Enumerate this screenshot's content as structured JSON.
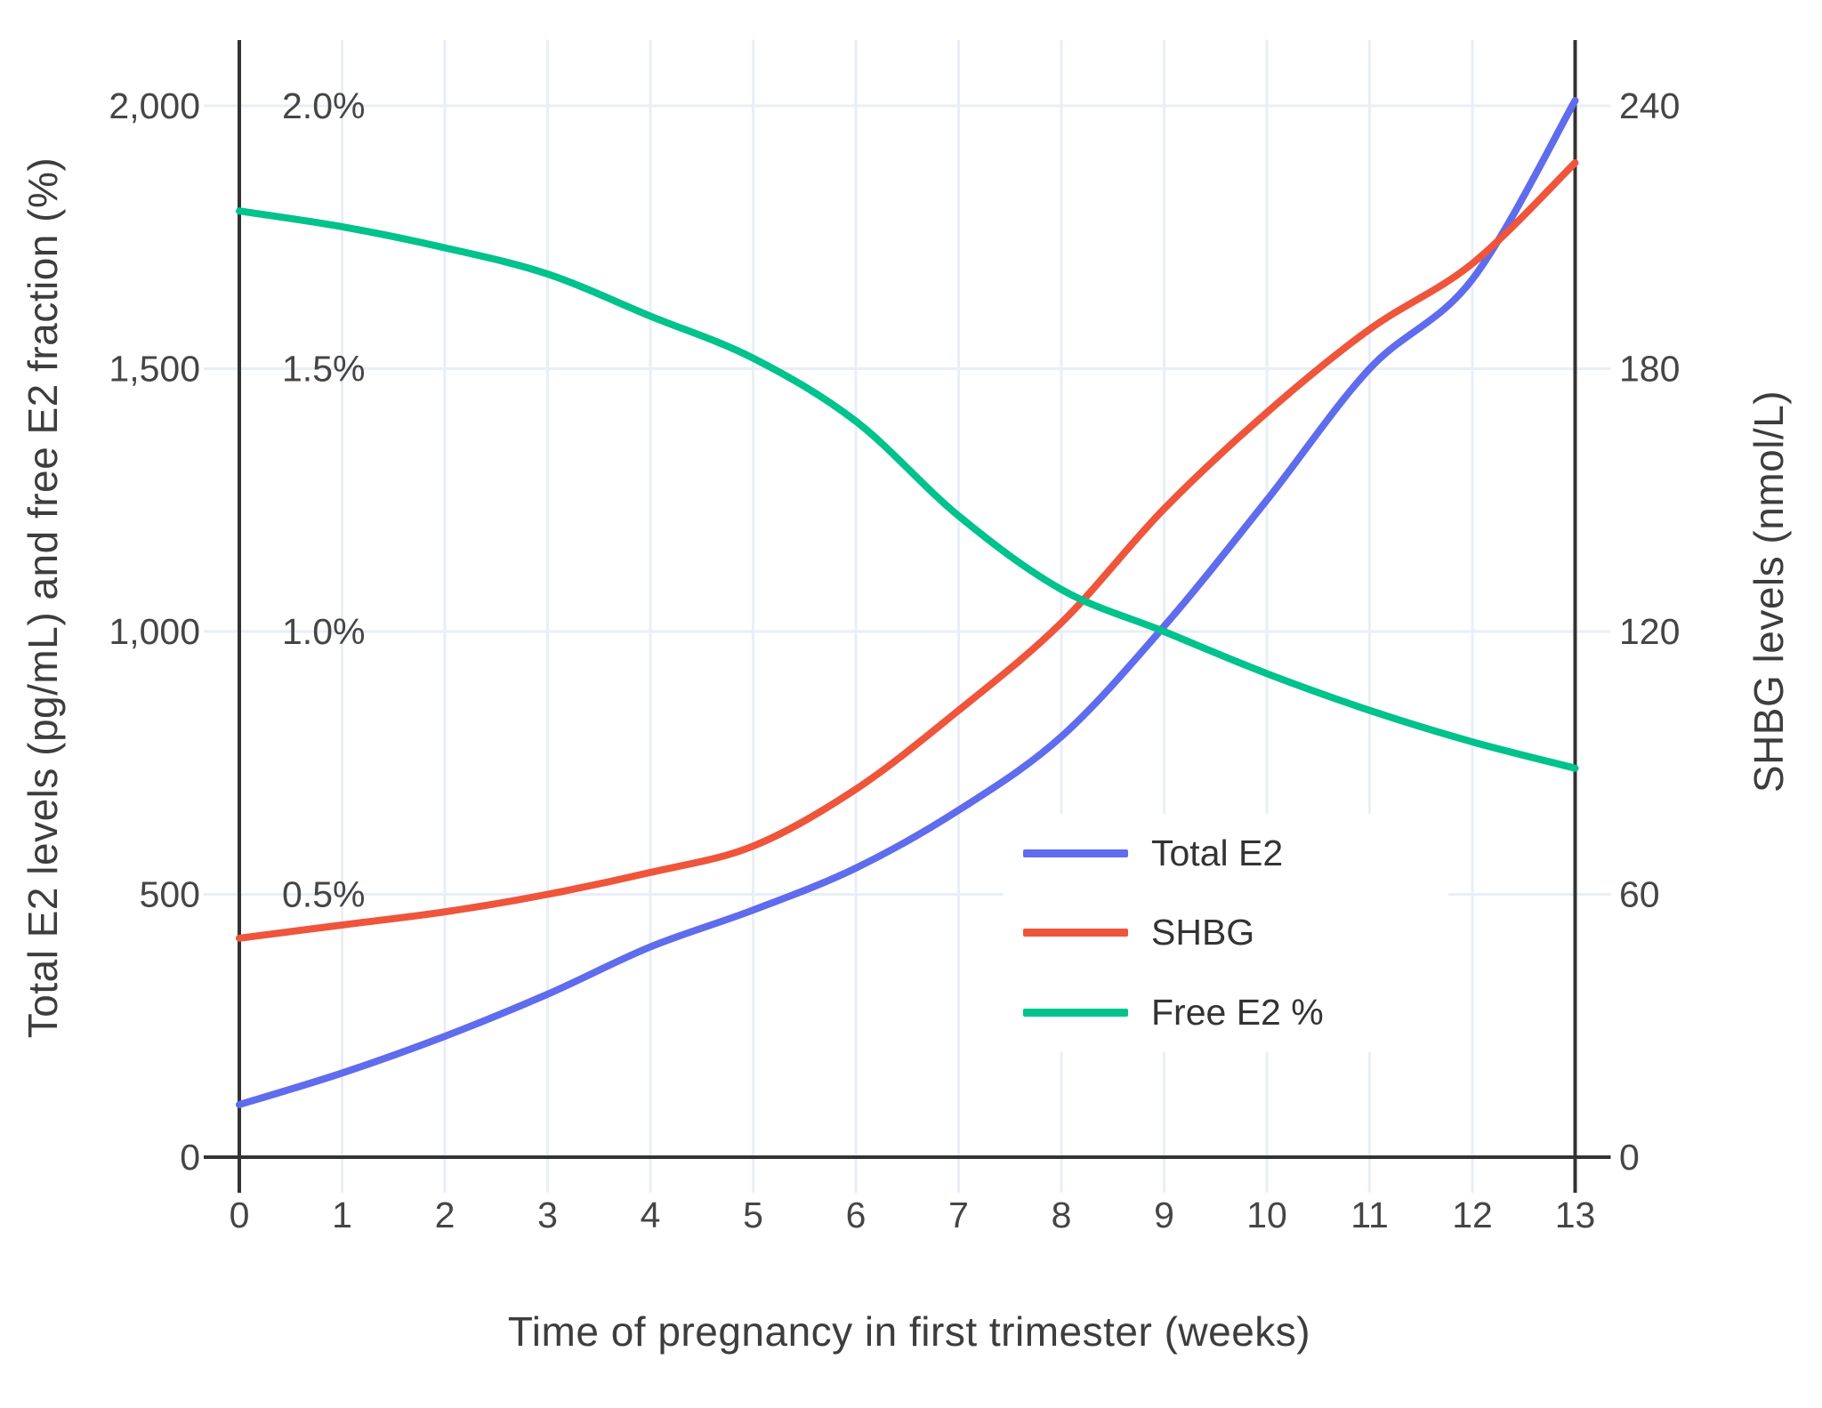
{
  "chart_data": {
    "type": "line",
    "title": "",
    "xlabel": "Time of pregnancy in first trimester (weeks)",
    "ylabel_left": "Total E2 levels (pg/mL) and free E2 fraction (%)",
    "ylabel_right": "SHBG levels (nmol/L)",
    "x": [
      0,
      1,
      2,
      3,
      4,
      5,
      6,
      7,
      8,
      9,
      10,
      11,
      12,
      13
    ],
    "x_tick_labels": [
      "0",
      "1",
      "2",
      "3",
      "4",
      "5",
      "6",
      "7",
      "8",
      "9",
      "10",
      "11",
      "12",
      "13"
    ],
    "y_left_ticks": {
      "values": [
        0,
        500,
        1000,
        1500,
        2000
      ],
      "labels": [
        "0",
        "500",
        "1,000",
        "1,500",
        "2,000"
      ]
    },
    "y_left_pct_ticks": {
      "values": [
        500,
        1000,
        1500,
        2000
      ],
      "labels": [
        "0.5%",
        "1.0%",
        "1.5%",
        "2.0%"
      ]
    },
    "y_right_ticks": {
      "values": [
        0,
        60,
        120,
        180,
        240
      ],
      "labels": [
        "0",
        "60",
        "120",
        "180",
        "240"
      ]
    },
    "y_left_range": [
      0,
      2130
    ],
    "y_right_range": [
      0,
      255.6
    ],
    "x_range": [
      0,
      13
    ],
    "grid": true,
    "legend_position": "inside-right",
    "series": [
      {
        "name": "Total E2",
        "axis": "left",
        "unit": "pg/mL",
        "color": "#5F6CEE",
        "values": [
          100,
          160,
          230,
          310,
          400,
          470,
          550,
          660,
          800,
          1010,
          1250,
          1500,
          1670,
          2010
        ]
      },
      {
        "name": "SHBG",
        "axis": "right",
        "unit": "nmol/L",
        "color": "#EF553B",
        "values": [
          50,
          53,
          56,
          60,
          65,
          71,
          84,
          102,
          122,
          148,
          170,
          189,
          204,
          227
        ]
      },
      {
        "name": "Free E2 %",
        "axis": "left-percent",
        "unit": "%",
        "values_note": "plotted on left axis where 500 units = 0.5%",
        "color": "#00C28C",
        "values": [
          1.8,
          1.77,
          1.73,
          1.68,
          1.6,
          1.52,
          1.4,
          1.22,
          1.08,
          1.0,
          0.92,
          0.85,
          0.79,
          0.74
        ]
      }
    ]
  },
  "legend": {
    "items": [
      {
        "label": "Total E2",
        "color": "#5F6CEE"
      },
      {
        "label": "SHBG",
        "color": "#EF553B"
      },
      {
        "label": "Free E2 %",
        "color": "#00C28C"
      }
    ]
  },
  "colors": {
    "background": "#ffffff",
    "gridline": "#E9EEF7",
    "axis_line": "#333333",
    "tick_label": "#454545",
    "axis_title": "#3d3d3d",
    "legend_text": "#333333"
  }
}
